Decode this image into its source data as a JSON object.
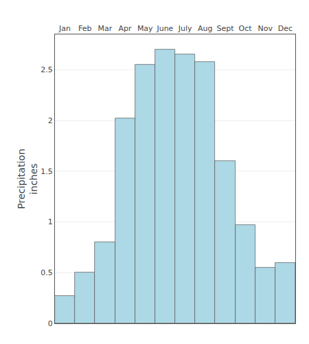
{
  "chart_data": {
    "type": "bar",
    "categories": [
      "Jan",
      "Feb",
      "Mar",
      "Apr",
      "May",
      "June",
      "July",
      "Aug",
      "Sept",
      "Oct",
      "Nov",
      "Dec"
    ],
    "values": [
      0.27,
      0.5,
      0.8,
      2.02,
      2.55,
      2.7,
      2.65,
      2.58,
      1.6,
      0.97,
      0.55,
      0.6
    ],
    "color": "#add8e6",
    "ylabel": "Precipitation\ninches",
    "ylim": [
      0,
      2.85
    ],
    "yticks": [
      0,
      0.5,
      1.0,
      1.5,
      2.0,
      2.5
    ],
    "grid": true
  }
}
